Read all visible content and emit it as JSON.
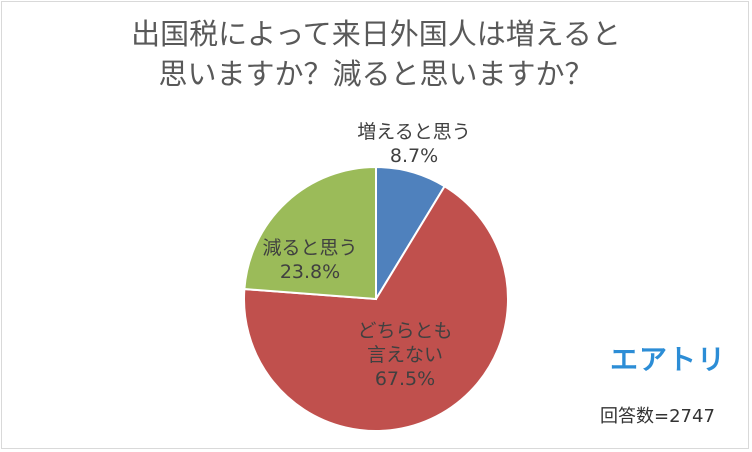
{
  "chart_data": {
    "type": "pie",
    "title_lines": [
      "出国税によって来日外国人は増えると",
      "思いますか？減ると思いますか？"
    ],
    "slices": [
      {
        "label": "増えると思う",
        "value": 8.7,
        "value_label": "8.7%",
        "color": "#4f81bd"
      },
      {
        "label_lines": [
          "どちらとも",
          "言えない"
        ],
        "value": 67.5,
        "value_label": "67.5%",
        "color": "#c0504d"
      },
      {
        "label": "減ると思う",
        "value": 23.8,
        "value_label": "23.8%",
        "color": "#9bbb59"
      }
    ],
    "start_angle_deg": 0,
    "direction": "clockwise"
  },
  "brand": {
    "logo_text": "エアトリ",
    "color": "#2c8dd6"
  },
  "footer": {
    "respondents": "回答数=2747"
  }
}
